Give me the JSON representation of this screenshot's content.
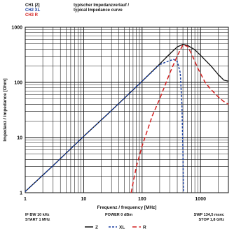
{
  "header": {
    "channels": [
      {
        "label": "CH1 |Z|",
        "color": "#111111"
      },
      {
        "label": "CH2 XL",
        "color": "#1a3fa0"
      },
      {
        "label": "CH3 R",
        "color": "#d42020"
      }
    ],
    "title_lines": [
      "typischer Impedanzverlauf /",
      "typical Impedance curve"
    ]
  },
  "footer": {
    "left": [
      "IF BW 10 kHz",
      "START 1 MHz"
    ],
    "center": "POWER 0 dBm",
    "right": [
      "SWP 134,5 msec",
      "STOP 1,8 GHz"
    ]
  },
  "chart_data": {
    "type": "line",
    "xscale": "log",
    "yscale": "log",
    "xlabel": "Frequenz / frequency [MHz]",
    "ylabel": "Impedanz / impedance [Ohm]",
    "xlim": [
      1,
      3000
    ],
    "ylim": [
      1,
      1000
    ],
    "x_ticks": [
      1,
      10,
      100,
      1000
    ],
    "x_tick_labels": [
      "1",
      "10",
      "100",
      "1000"
    ],
    "y_ticks": [
      1,
      10,
      100,
      1000
    ],
    "y_tick_labels": [
      "1",
      "10",
      "100",
      "1000"
    ],
    "grid": true,
    "legend_position": "bottom",
    "series": [
      {
        "name": "Z",
        "color": "#111111",
        "dash": "solid",
        "x": [
          1,
          3,
          10,
          30,
          100,
          200,
          300,
          400,
          500,
          600,
          800,
          1000,
          1500,
          2000,
          2500,
          3000
        ],
        "y": [
          1.05,
          3.1,
          10.5,
          31,
          105,
          215,
          330,
          440,
          490,
          470,
          390,
          310,
          200,
          140,
          110,
          105
        ]
      },
      {
        "name": "XL",
        "color": "#1a3fa0",
        "dash": "dotted",
        "x": [
          1,
          3,
          10,
          30,
          100,
          200,
          300,
          350,
          400,
          450,
          480,
          500,
          510
        ],
        "y": [
          1.05,
          3.1,
          10.5,
          31,
          105,
          210,
          250,
          260,
          240,
          150,
          40,
          6,
          1
        ]
      },
      {
        "name": "R",
        "color": "#d42020",
        "dash": "dashed",
        "x": [
          65,
          70,
          80,
          100,
          150,
          200,
          300,
          400,
          500,
          600,
          700,
          900,
          1200,
          1500,
          2000,
          2500,
          3000
        ],
        "y": [
          1,
          1.5,
          3,
          7,
          25,
          50,
          150,
          300,
          480,
          450,
          330,
          180,
          100,
          75,
          55,
          45,
          40
        ]
      }
    ]
  }
}
